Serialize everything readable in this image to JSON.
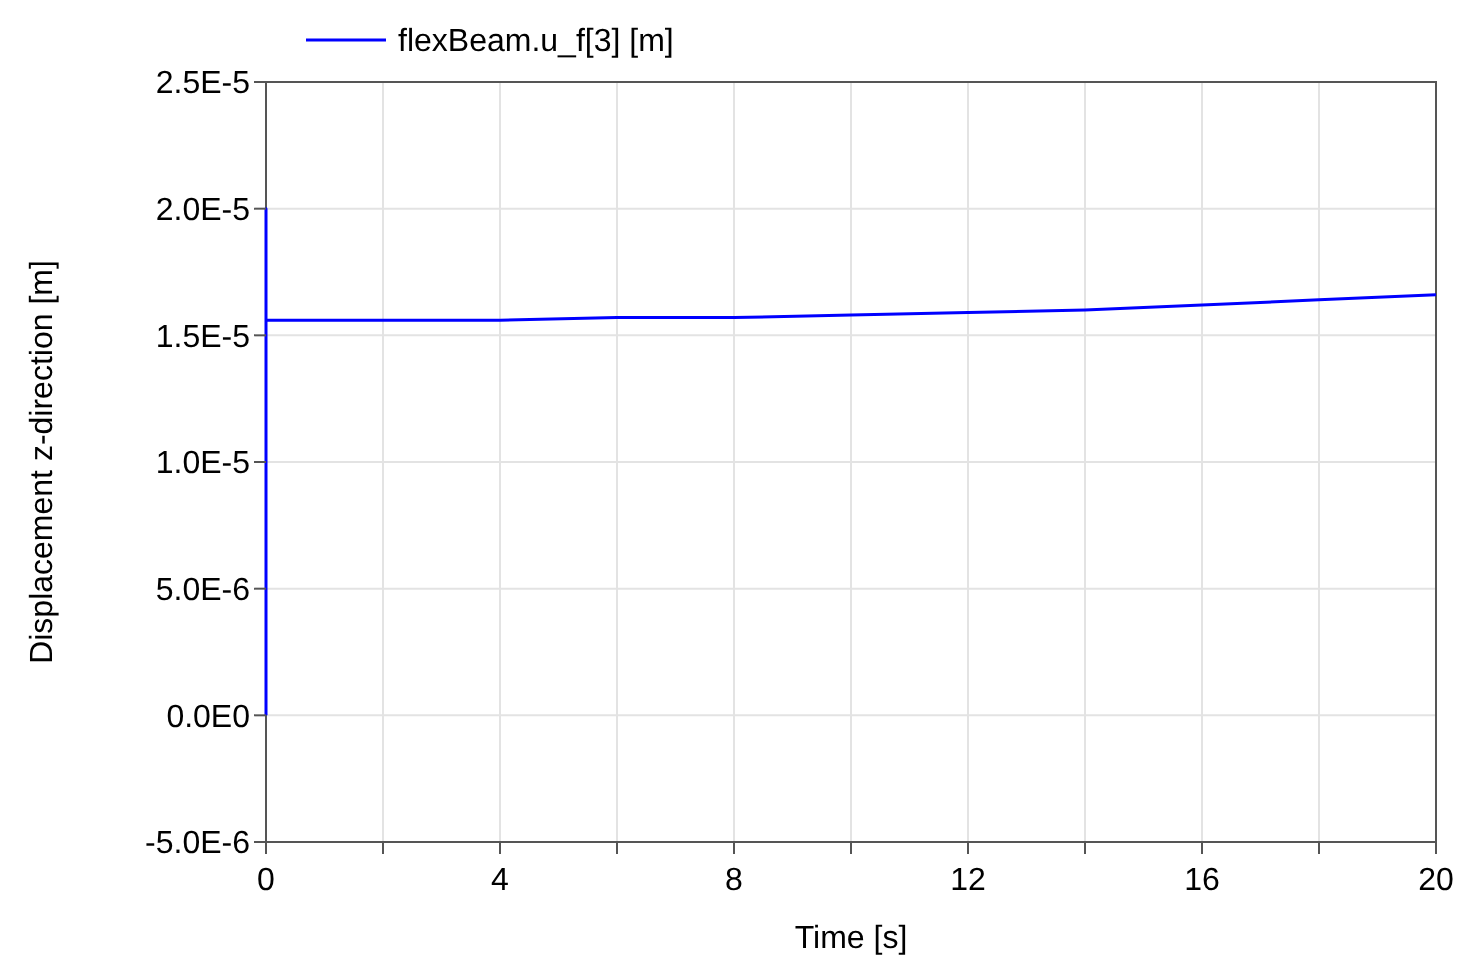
{
  "chart_data": {
    "type": "line",
    "xlabel": "Time [s]",
    "ylabel": "Displacement z-direction [m]",
    "series": [
      {
        "name": "flexBeam.u_f[3] [m]",
        "color": "#0000ff",
        "x": [
          0,
          0,
          0,
          2,
          4,
          6,
          8,
          10,
          12,
          14,
          16,
          18,
          20
        ],
        "values": [
          0,
          2e-05,
          1.56e-05,
          1.56e-05,
          1.56e-05,
          1.57e-05,
          1.57e-05,
          1.58e-05,
          1.59e-05,
          1.6e-05,
          1.62e-05,
          1.64e-05,
          1.66e-05
        ]
      }
    ],
    "xlim": [
      0,
      20
    ],
    "xticks": [
      0,
      {
        "value": 2,
        "label": null
      },
      4,
      {
        "value": 6,
        "label": null
      },
      8,
      {
        "value": 10,
        "label": null
      },
      12,
      {
        "value": 14,
        "label": null
      },
      16,
      {
        "value": 18,
        "label": null
      },
      20
    ],
    "ylim": [
      -5e-06,
      2.5e-05
    ],
    "yticks": [
      {
        "value": -5e-06,
        "label": "-5.0E-6"
      },
      {
        "value": 0,
        "label": "0.0E0"
      },
      {
        "value": 5e-06,
        "label": "5.0E-6"
      },
      {
        "value": 1e-05,
        "label": "1.0E-5"
      },
      {
        "value": 1.5e-05,
        "label": "1.5E-5"
      },
      {
        "value": 2e-05,
        "label": "2.0E-5"
      },
      {
        "value": 2.5e-05,
        "label": "2.5E-5"
      }
    ],
    "grid": true,
    "legend": "top left",
    "marker": "none",
    "line_style": "solid"
  }
}
